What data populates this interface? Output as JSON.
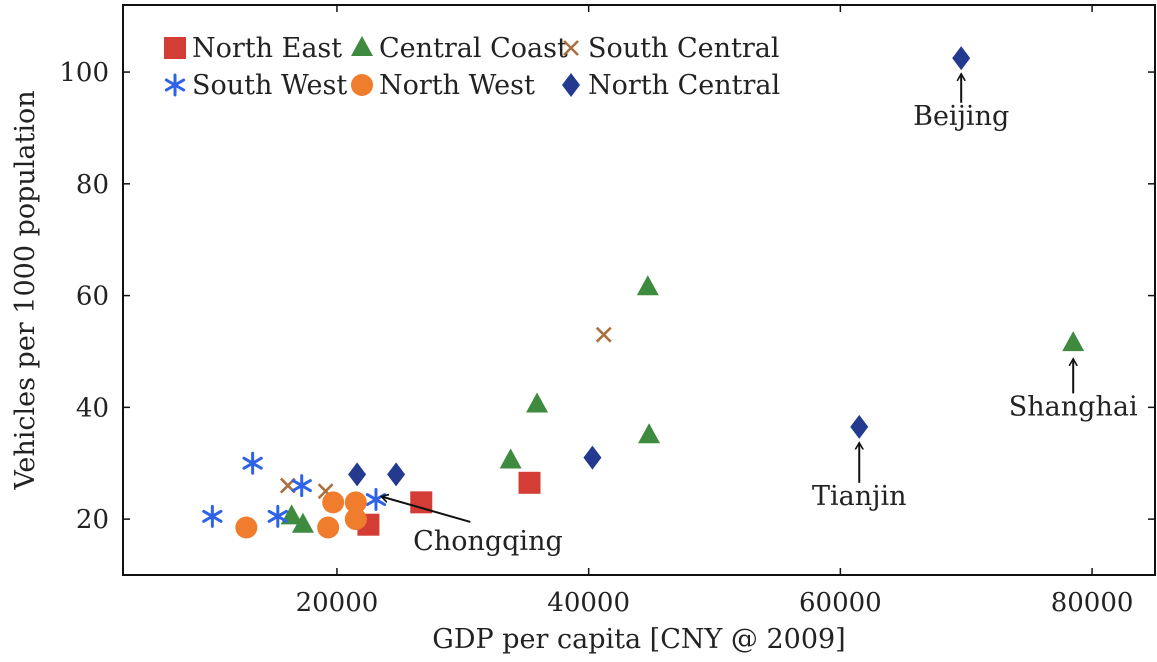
{
  "colors": {
    "North East": "#d33d35",
    "Central Coast": "#3e8a3e",
    "South Central": "#a9713f",
    "South West": "#2f63e6",
    "North West": "#f07d2e",
    "North Central": "#243a8f"
  },
  "chart_data": {
    "type": "scatter",
    "title": "",
    "xlabel": "GDP per capita [CNY @ 2009]",
    "ylabel": "Vehicles per 1000 population",
    "xlim": [
      3000,
      85000
    ],
    "ylim": [
      10,
      112
    ],
    "xticks": [
      20000,
      40000,
      60000,
      80000
    ],
    "yticks": [
      20,
      40,
      60,
      80,
      100
    ],
    "grid": false,
    "legend_position": "top-left",
    "series": [
      {
        "name": "North East",
        "marker": "square",
        "points": [
          [
            22500,
            19
          ],
          [
            26700,
            23
          ],
          [
            35300,
            26.5
          ]
        ]
      },
      {
        "name": "Central Coast",
        "marker": "triangle",
        "points": [
          [
            16400,
            20.5
          ],
          [
            17300,
            19
          ],
          [
            33800,
            30.5
          ],
          [
            35900,
            40.5
          ],
          [
            44700,
            61.5
          ],
          [
            44800,
            35
          ],
          [
            78500,
            51.5
          ]
        ]
      },
      {
        "name": "South Central",
        "marker": "cross",
        "points": [
          [
            16100,
            26
          ],
          [
            19100,
            25
          ],
          [
            41200,
            53
          ]
        ]
      },
      {
        "name": "South West",
        "marker": "asterisk",
        "points": [
          [
            10100,
            20.5
          ],
          [
            13300,
            30
          ],
          [
            15300,
            20.5
          ],
          [
            17200,
            26
          ],
          [
            23100,
            23.5
          ]
        ]
      },
      {
        "name": "North West",
        "marker": "circle",
        "points": [
          [
            12800,
            18.5
          ],
          [
            19300,
            18.5
          ],
          [
            19700,
            23
          ],
          [
            21500,
            23
          ],
          [
            21500,
            20
          ]
        ]
      },
      {
        "name": "North Central",
        "marker": "diamond",
        "points": [
          [
            21600,
            28
          ],
          [
            24700,
            28
          ],
          [
            40300,
            31
          ],
          [
            61500,
            36.5
          ],
          [
            69600,
            102.5
          ]
        ]
      }
    ],
    "annotations": [
      {
        "text": "Beijing",
        "point": [
          69600,
          102.5
        ],
        "label_at": [
          69600,
          90.5
        ],
        "arrow_from": [
          69600,
          94.5
        ],
        "arrow_to": [
          69600,
          99.5
        ],
        "anchor": "middle"
      },
      {
        "text": "Shanghai",
        "point": [
          78500,
          51.5
        ],
        "label_at": [
          78500,
          38.5
        ],
        "arrow_from": [
          78500,
          42.5
        ],
        "arrow_to": [
          78500,
          48.5
        ],
        "anchor": "middle"
      },
      {
        "text": "Tianjin",
        "point": [
          61500,
          36.5
        ],
        "label_at": [
          61500,
          22.5
        ],
        "arrow_from": [
          61500,
          26.5
        ],
        "arrow_to": [
          61500,
          33.5
        ],
        "anchor": "middle"
      },
      {
        "text": "Chongqing",
        "point": [
          23100,
          23.5
        ],
        "label_at": [
          32000,
          14.5
        ],
        "arrow_from": [
          30600,
          19.5
        ],
        "arrow_to": [
          23600,
          24
        ],
        "anchor": "middle"
      }
    ]
  }
}
